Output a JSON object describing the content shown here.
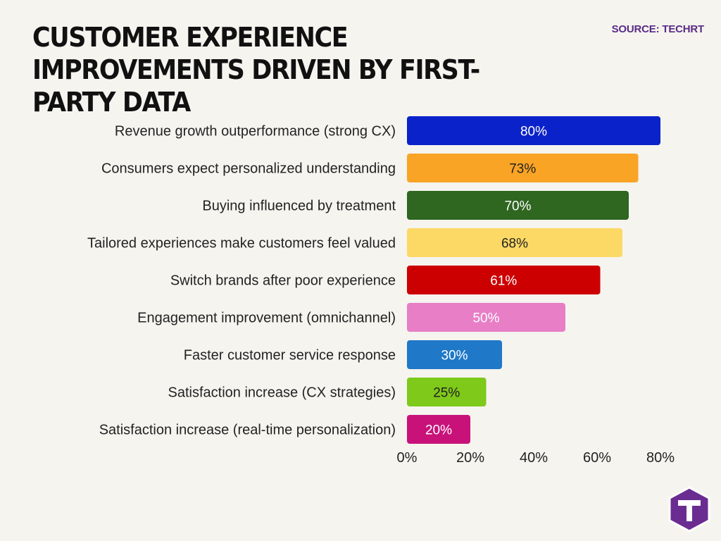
{
  "title": "CUSTOMER EXPERIENCE IMPROVEMENTS DRIVEN BY FIRST-PARTY DATA",
  "source": "SOURCE: TECHRT",
  "logo_icon": "techrt-t-logo",
  "chart_data": {
    "type": "bar",
    "orientation": "horizontal",
    "title": "CUSTOMER EXPERIENCE IMPROVEMENTS DRIVEN BY FIRST-PARTY DATA",
    "xlabel": "",
    "ylabel": "",
    "xlim": [
      0,
      80
    ],
    "grid": false,
    "categories": [
      "Revenue growth outperformance (strong CX)",
      "Consumers expect personalized understanding",
      "Buying influenced by treatment",
      "Tailored experiences make customers feel valued",
      "Switch brands after poor experience",
      "Engagement improvement (omnichannel)",
      "Faster customer service response",
      "Satisfaction increase (CX strategies)",
      "Satisfaction increase (real-time personalization)"
    ],
    "values": [
      80,
      73,
      70,
      68,
      61,
      50,
      30,
      25,
      20
    ],
    "value_labels": [
      "80%",
      "73%",
      "70%",
      "68%",
      "61%",
      "50%",
      "30%",
      "25%",
      "20%"
    ],
    "colors": [
      "#0a22c9",
      "#f9a425",
      "#2f6620",
      "#fcd964",
      "#cc0000",
      "#e87ec6",
      "#1f78c8",
      "#7ec91a",
      "#c8127a"
    ],
    "label_colors": [
      "#ffffff",
      "#222222",
      "#ffffff",
      "#222222",
      "#ffffff",
      "#ffffff",
      "#ffffff",
      "#222222",
      "#ffffff"
    ],
    "x_ticks": [
      0,
      20,
      40,
      60,
      80
    ],
    "x_tick_labels": [
      "0%",
      "20%",
      "40%",
      "60%",
      "80%"
    ]
  }
}
